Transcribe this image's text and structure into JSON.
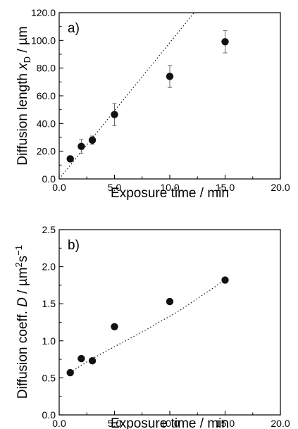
{
  "chart_data": [
    {
      "type": "scatter",
      "panel_label": "a)",
      "xlabel": "Exposure time / min",
      "ylabel_parts": [
        "Diffusion length ",
        "x",
        "D",
        " / µm"
      ],
      "xlim": [
        0,
        20
      ],
      "ylim": [
        0,
        120
      ],
      "xticks": [
        "0.0",
        "5.0",
        "10.0",
        "15.0",
        "20.0"
      ],
      "xtick_values": [
        0,
        5,
        10,
        15,
        20
      ],
      "yticks": [
        "0.0",
        "20.0",
        "40.0",
        "60.0",
        "80.0",
        "100.0",
        "120.0"
      ],
      "ytick_values": [
        0,
        20,
        40,
        60,
        80,
        100,
        120
      ],
      "series": [
        {
          "x": [
            1,
            2,
            3,
            5,
            10,
            15
          ],
          "y": [
            14.5,
            23.5,
            28,
            46.5,
            74,
            99
          ],
          "y_error": [
            2,
            5,
            3,
            8,
            8,
            8
          ],
          "marker": "filled-circle",
          "color": "#111111"
        }
      ],
      "fit_line": {
        "style": "dotted",
        "x": [
          0,
          12.2
        ],
        "y": [
          0,
          120
        ]
      },
      "grid": false
    },
    {
      "type": "scatter",
      "panel_label": "b)",
      "xlabel": "Exposure time / min",
      "ylabel_parts": [
        "Diffusion coeff. ",
        "D",
        " / µm",
        "2",
        "s",
        "−1"
      ],
      "xlim": [
        0,
        20
      ],
      "ylim": [
        0,
        2.5
      ],
      "xticks": [
        "0.0",
        "5.0",
        "10.0",
        "15.0",
        "20.0"
      ],
      "xtick_values": [
        0,
        5,
        10,
        15,
        20
      ],
      "yticks": [
        "0.0",
        "0.5",
        "1.0",
        "1.5",
        "2.0",
        "2.5"
      ],
      "ytick_values": [
        0,
        0.5,
        1.0,
        1.5,
        2.0,
        2.5
      ],
      "series": [
        {
          "x": [
            1,
            2,
            3,
            5,
            10,
            15
          ],
          "y": [
            0.57,
            0.76,
            0.73,
            1.19,
            1.53,
            1.82
          ],
          "marker": "filled-circle",
          "color": "#111111"
        }
      ],
      "fit_line": {
        "style": "dotted",
        "x": [
          1,
          2,
          3,
          4,
          5,
          6,
          7,
          8,
          9,
          10,
          11,
          12,
          13,
          14,
          15
        ],
        "y": [
          0.57,
          0.67,
          0.76,
          0.84,
          0.92,
          1.0,
          1.08,
          1.16,
          1.25,
          1.33,
          1.42,
          1.52,
          1.62,
          1.72,
          1.83
        ]
      },
      "grid": false
    }
  ]
}
